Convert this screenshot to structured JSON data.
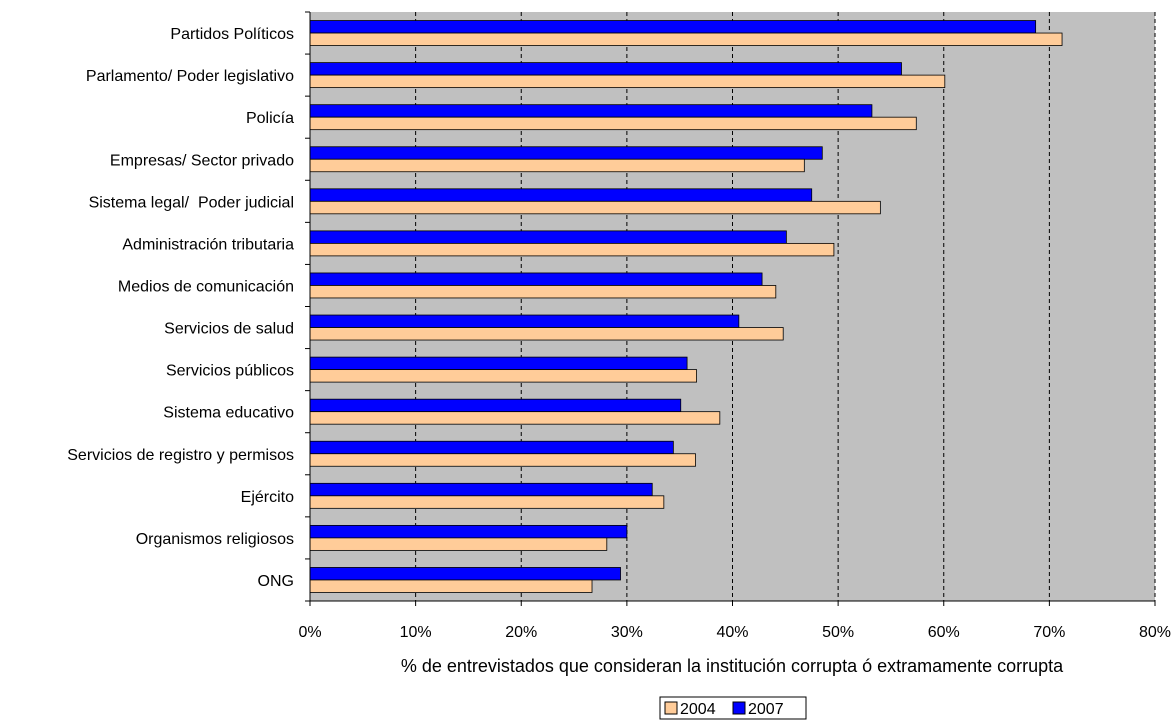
{
  "chart_data": {
    "type": "bar",
    "orientation": "horizontal",
    "categories": [
      "Partidos Políticos",
      "Parlamento/ Poder legislativo",
      "Policía",
      "Empresas/ Sector privado",
      "Sistema legal/  Poder judicial",
      "Administración tributaria",
      "Medios de comunicación",
      "Servicios de salud",
      "Servicios públicos",
      "Sistema educativo",
      "Servicios de registro y permisos",
      "Ejército",
      "Organismos religiosos",
      "ONG"
    ],
    "series": [
      {
        "name": "2007",
        "color": "#0000ff",
        "values": [
          68.7,
          56.0,
          53.2,
          48.5,
          47.5,
          45.1,
          42.8,
          40.6,
          35.7,
          35.1,
          34.4,
          32.4,
          30.0,
          29.4
        ]
      },
      {
        "name": "2004",
        "color": "#ffcc99",
        "values": [
          71.2,
          60.1,
          57.4,
          46.8,
          54.0,
          49.6,
          44.1,
          44.8,
          36.6,
          38.8,
          36.5,
          33.5,
          28.1,
          26.7
        ]
      }
    ],
    "legend_order": [
      "2004",
      "2007"
    ],
    "xlim": [
      0,
      80
    ],
    "xticks": [
      "0%",
      "10%",
      "20%",
      "30%",
      "40%",
      "50%",
      "60%",
      "70%",
      "80%"
    ],
    "xlabel": "% de entrevistados que consideran la institución corrupta ó extramamente corrupta",
    "plot_background": "#c0c0c0",
    "gridlines": "dashed vertical",
    "legend_position": "bottom"
  }
}
